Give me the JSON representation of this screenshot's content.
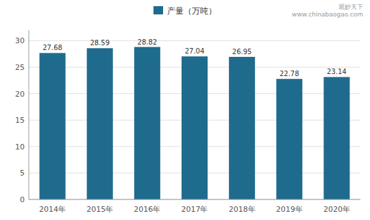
{
  "chart_data": {
    "type": "bar",
    "categories": [
      "2014年",
      "2015年",
      "2016年",
      "2017年",
      "2018年",
      "2019年",
      "2020年"
    ],
    "series": [
      {
        "name": "产量（万吨）",
        "color": "#1f6b8e",
        "values": [
          27.68,
          28.59,
          28.82,
          27.04,
          26.95,
          22.78,
          23.14
        ]
      }
    ],
    "ylim": [
      0,
      32
    ],
    "yticks": [
      0,
      5,
      10,
      15,
      20,
      25,
      30
    ],
    "grid": true,
    "legend": "top",
    "data_labels": true,
    "annotations": [
      "观妙天下",
      "www.chinabaogao.com"
    ]
  }
}
